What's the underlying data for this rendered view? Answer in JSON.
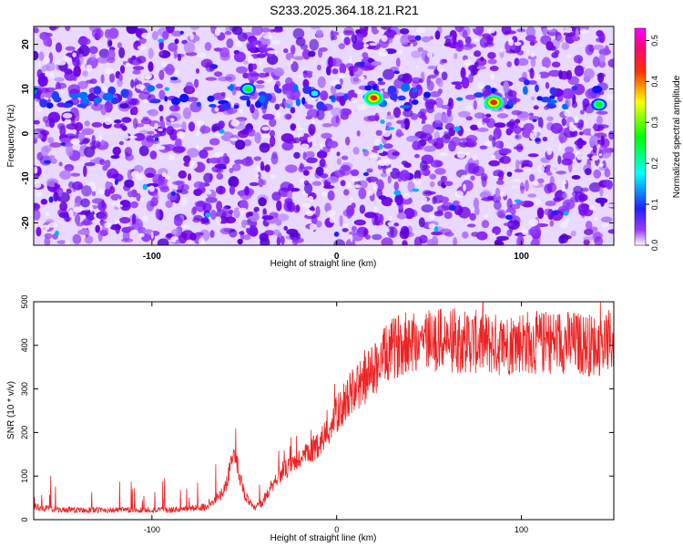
{
  "figure": {
    "title": "S233.2025.364.18.21.R21"
  },
  "chart_data": [
    {
      "type": "heatmap",
      "xlabel": "Height of straight line (km)",
      "ylabel": "Frequency (Hz)",
      "xlim": [
        -164,
        150
      ],
      "ylim": [
        -25,
        24
      ],
      "xticks": [
        -100,
        0,
        100
      ],
      "yticks": [
        -20,
        -10,
        0,
        10,
        20
      ],
      "colorbar": {
        "label": "Normalized spectral amplitude",
        "range": [
          0,
          0.53
        ],
        "ticks": [
          0,
          0.1,
          0.2,
          0.3,
          0.4,
          0.5
        ],
        "colormap": [
          "#ffffff",
          "#8000ff",
          "#0000ff",
          "#00ffff",
          "#00ff00",
          "#ffff00",
          "#ff0000",
          "#ff00ff"
        ]
      },
      "features": [
        {
          "x": 20,
          "y": 8,
          "value": 0.45
        },
        {
          "x": 85,
          "y": 7,
          "value": 0.5
        },
        {
          "x": -48,
          "y": 10,
          "value": 0.2
        },
        {
          "x": -12,
          "y": 9,
          "value": 0.15
        },
        {
          "x": 142,
          "y": 6.5,
          "value": 0.18
        }
      ]
    },
    {
      "type": "line",
      "xlabel": "Height of straight line (km)",
      "ylabel": "SNR (10 * v/v)",
      "xlim": [
        -164,
        150
      ],
      "ylim": [
        0,
        500
      ],
      "xticks": [
        -100,
        0,
        100
      ],
      "yticks": [
        0,
        100,
        200,
        300,
        400,
        500
      ],
      "color": "#ee2222",
      "series": [
        {
          "x": [
            -164,
            -150,
            -140,
            -130,
            -120,
            -110,
            -100,
            -90,
            -80,
            -70,
            -65,
            -60,
            -57,
            -54,
            -50,
            -45,
            -40,
            -35,
            -30,
            -25,
            -20,
            -15,
            -10,
            -5,
            0,
            5,
            10,
            15,
            20,
            25,
            30,
            35,
            40,
            50,
            60,
            70,
            80,
            90,
            100,
            110,
            120,
            130,
            140,
            150
          ],
          "y": [
            30,
            22,
            22,
            22,
            22,
            22,
            22,
            22,
            25,
            30,
            45,
            75,
            140,
            130,
            60,
            25,
            40,
            80,
            110,
            120,
            140,
            150,
            175,
            200,
            240,
            275,
            300,
            320,
            345,
            370,
            390,
            405,
            410,
            415,
            410,
            410,
            405,
            400,
            410,
            405,
            410,
            405,
            400,
            410
          ]
        }
      ]
    }
  ]
}
